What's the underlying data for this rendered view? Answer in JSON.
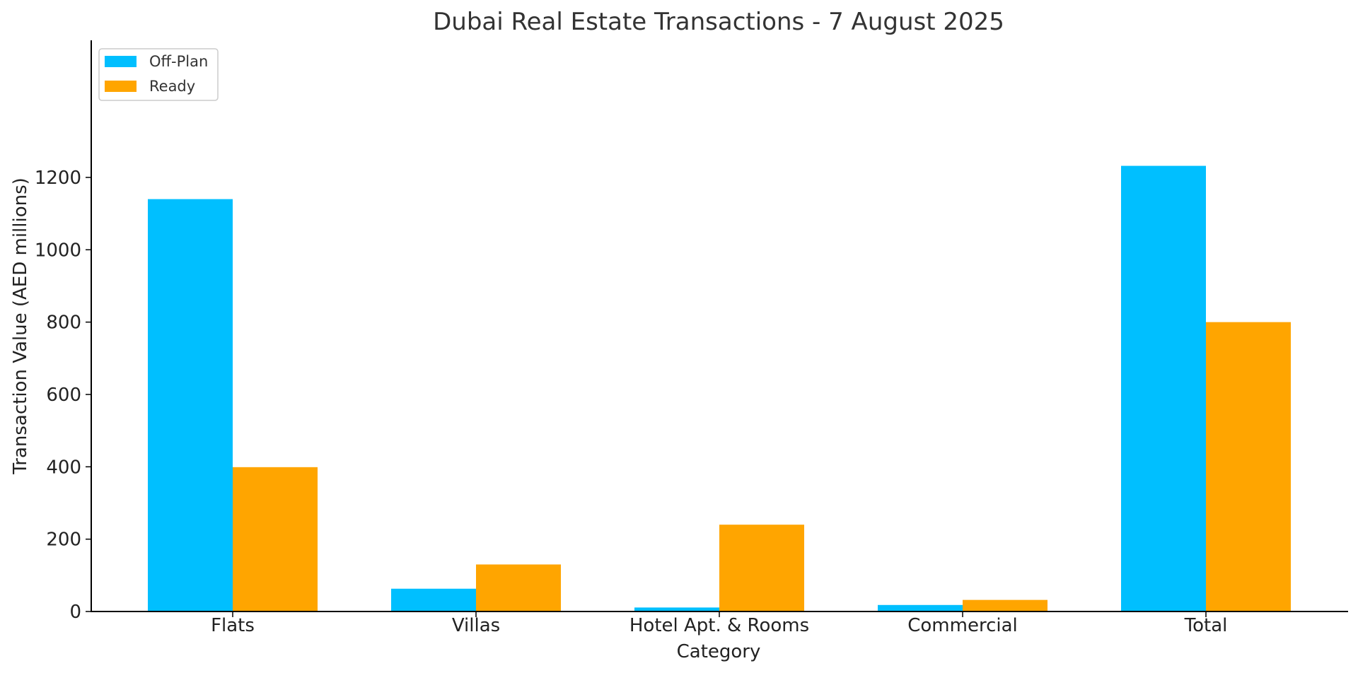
{
  "chart_data": {
    "type": "bar",
    "title": "Dubai Real Estate Transactions - 7 August 2025",
    "xlabel": "Category",
    "ylabel": "Transaction Value (AED millions)",
    "categories": [
      "Flats",
      "Villas",
      "Hotel Apt. & Rooms",
      "Commercial",
      "Total"
    ],
    "series": [
      {
        "name": "Off-Plan",
        "color": "#00BFFF",
        "values": [
          1140,
          63,
          11,
          18,
          1232
        ]
      },
      {
        "name": "Ready",
        "color": "#FFA500",
        "values": [
          399,
          130,
          240,
          32,
          800
        ]
      }
    ],
    "ylim": [
      0,
      1295
    ],
    "yticks": [
      0,
      200,
      400,
      600,
      800,
      1000,
      1200
    ],
    "legend_position": "top-left",
    "grid": false
  }
}
